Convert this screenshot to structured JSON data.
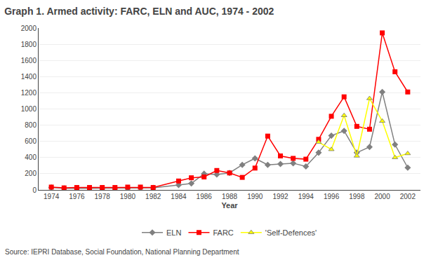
{
  "chart_data": {
    "type": "line",
    "title": "Graph 1. Armed activity: FARC, ELN and AUC, 1974 - 2002",
    "x_label": "Year",
    "annotations": [
      "Source: IEPRI Database, Social Foundation, National Planning Department"
    ],
    "series": [
      {
        "name": "ELN",
        "color": "#808080",
        "marker": "diamond",
        "x": [
          1974,
          1975,
          1976,
          1977,
          1978,
          1979,
          1980,
          1981,
          1982,
          1984,
          1985,
          1986,
          1987,
          1988,
          1989,
          1990,
          1991,
          1992,
          1993,
          1994,
          1995,
          1996,
          1997,
          1998,
          1999,
          2000,
          2001,
          2002
        ],
        "values": [
          30,
          20,
          20,
          20,
          20,
          20,
          20,
          25,
          25,
          60,
          80,
          200,
          190,
          210,
          310,
          390,
          310,
          320,
          330,
          290,
          460,
          670,
          730,
          460,
          530,
          1210,
          560,
          275
        ]
      },
      {
        "name": "FARC",
        "color": "#ff0000",
        "marker": "square",
        "x": [
          1974,
          1975,
          1976,
          1977,
          1978,
          1979,
          1980,
          1981,
          1982,
          1984,
          1985,
          1986,
          1987,
          1988,
          1989,
          1990,
          1991,
          1992,
          1993,
          1994,
          1995,
          1996,
          1997,
          1998,
          1999,
          2000,
          2001,
          2002
        ],
        "values": [
          35,
          25,
          30,
          30,
          30,
          30,
          35,
          35,
          30,
          110,
          150,
          160,
          240,
          210,
          155,
          270,
          665,
          420,
          390,
          380,
          625,
          910,
          1150,
          785,
          750,
          1940,
          1460,
          1210
        ]
      },
      {
        "name": "'Self-Defences'",
        "color": "#ffff00",
        "marker": "triangle-up",
        "x": [
          1995,
          1996,
          1997,
          1998,
          1999,
          2000,
          2001,
          2002
        ],
        "values": [
          590,
          500,
          920,
          420,
          1130,
          850,
          400,
          450
        ]
      }
    ],
    "xlim": [
      1973,
      2003
    ],
    "xticks": [
      1974,
      1976,
      1978,
      1980,
      1982,
      1984,
      1986,
      1988,
      1990,
      1992,
      1994,
      1996,
      1998,
      2000,
      2002
    ],
    "ylim": [
      0,
      2000
    ],
    "yticks": [
      0,
      200,
      400,
      600,
      800,
      1000,
      1200,
      1400,
      1600,
      1800,
      2000
    ],
    "grid": "y",
    "legend": "bottom"
  }
}
